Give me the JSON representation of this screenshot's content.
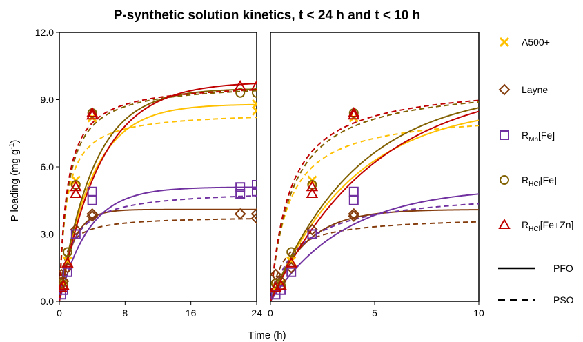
{
  "chart_data": {
    "type": "scatter",
    "title": "P-synthetic solution kinetics, t < 24 h and t < 10 h",
    "ylabel": "P loading (mg g-1)",
    "ylabel_main": "P loading (mg g",
    "ylabel_sup": "-1",
    "ylabel_end": ")",
    "xlabel": "Time (h)",
    "ylim": [
      0,
      12
    ],
    "yticks": [
      "0.0",
      "3.0",
      "6.0",
      "9.0",
      "12.0"
    ],
    "grid": false,
    "legend_position": "right",
    "panels": [
      {
        "xlim": [
          0,
          24
        ],
        "xticks": [
          "0",
          "8",
          "16",
          "24"
        ]
      },
      {
        "xlim": [
          0,
          10
        ],
        "xticks": [
          "0",
          "5",
          "10"
        ]
      }
    ],
    "series": [
      {
        "name": "A500+",
        "label_main": "A500+",
        "label_sub": "",
        "label_end": "",
        "color": "#FFC000",
        "marker": "x",
        "x": [
          0.25,
          0.5,
          1,
          2,
          4,
          24,
          24
        ],
        "y": [
          0.6,
          0.8,
          1.8,
          5.4,
          8.2,
          8.5,
          8.8
        ],
        "pfo": {
          "qe": 8.8,
          "k": 0.25
        },
        "pso": {
          "qe": 8.5,
          "k": 0.14
        }
      },
      {
        "name": "Layne",
        "label_main": "Layne",
        "label_sub": "",
        "label_end": "",
        "color": "#843C0C",
        "marker": "diamond",
        "x": [
          0.25,
          0.5,
          1,
          2,
          4,
          4,
          22,
          24,
          24
        ],
        "y": [
          1.2,
          0.9,
          1.5,
          3.2,
          3.9,
          3.8,
          3.9,
          3.7,
          3.9
        ],
        "pfo": {
          "qe": 4.1,
          "k": 0.6
        },
        "pso": {
          "qe": 3.8,
          "k": 0.37
        }
      },
      {
        "name": "RMn[Fe]",
        "label_main": "R",
        "label_sub": "Mn",
        "label_end": "[Fe]",
        "color": "#7030A0",
        "marker": "square",
        "x": [
          0.25,
          0.5,
          1,
          2,
          4,
          4,
          22,
          22,
          24,
          24
        ],
        "y": [
          0.3,
          0.5,
          1.3,
          3.0,
          4.5,
          4.9,
          4.8,
          5.1,
          4.9,
          5.2
        ],
        "pfo": {
          "qe": 5.1,
          "k": 0.28
        },
        "pso": {
          "qe": 5.0,
          "k": 0.135
        }
      },
      {
        "name": "RHCl[Fe]",
        "label_main": "R",
        "label_sub": "HCl",
        "label_end": "[Fe]",
        "color": "#806000",
        "marker": "circle",
        "x": [
          0.25,
          0.5,
          1,
          2,
          4,
          22,
          24
        ],
        "y": [
          0.8,
          0.7,
          2.2,
          5.2,
          8.4,
          9.3,
          9.3
        ],
        "pfo": {
          "qe": 9.5,
          "k": 0.24
        },
        "pso": {
          "qe": 9.8,
          "k": 0.1
        }
      },
      {
        "name": "RHCl[Fe+Zn]",
        "label_main": "R",
        "label_sub": "HCl",
        "label_end": "[Fe+Zn]",
        "color": "#C00000",
        "marker": "triangle",
        "x": [
          0.25,
          0.5,
          1,
          2,
          2,
          4,
          4,
          22,
          24
        ],
        "y": [
          0.6,
          0.7,
          1.7,
          4.8,
          5.1,
          8.3,
          8.4,
          9.6,
          9.6
        ],
        "pfo": {
          "qe": 9.8,
          "k": 0.2
        },
        "pso": {
          "qe": 9.8,
          "k": 0.11
        }
      }
    ],
    "line_legend": [
      {
        "label": "PFO",
        "style": "solid"
      },
      {
        "label": "PSO",
        "style": "dashed"
      }
    ]
  }
}
